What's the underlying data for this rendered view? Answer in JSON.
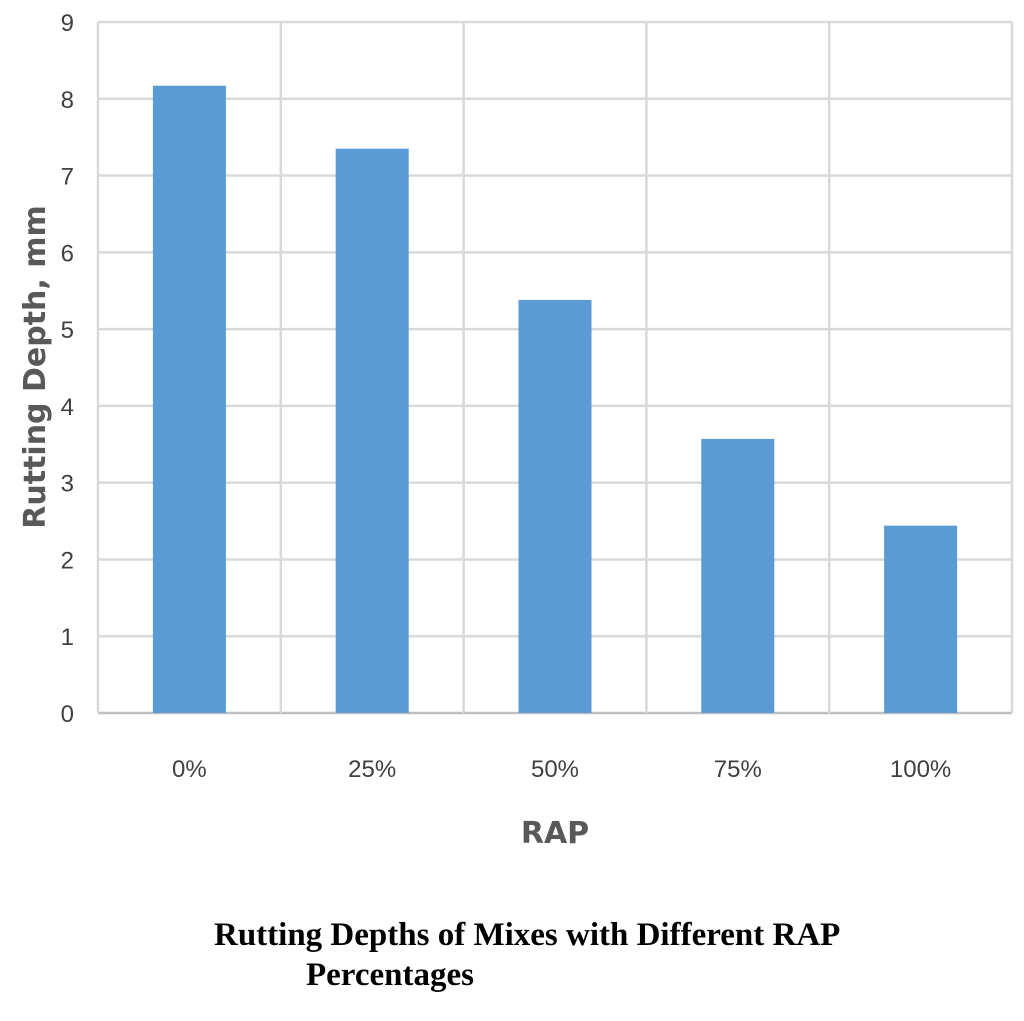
{
  "chart_data": {
    "type": "bar",
    "categories": [
      "0%",
      "25%",
      "50%",
      "75%",
      "100%"
    ],
    "values": [
      8.17,
      7.35,
      5.38,
      3.57,
      2.44
    ],
    "xlabel": "RAP",
    "ylabel": "Rutting Depth, mm",
    "ylim": [
      0,
      9
    ],
    "yticks": [
      "0",
      "1",
      "2",
      "3",
      "4",
      "5",
      "6",
      "7",
      "8",
      "9"
    ],
    "grid": true,
    "legend": "none",
    "bar_color": "#5b9bd5",
    "grid_color": "#d9d9d9"
  },
  "caption": {
    "line1": "Rutting Depths of Mixes with Different RAP",
    "line2": "Percentages"
  }
}
